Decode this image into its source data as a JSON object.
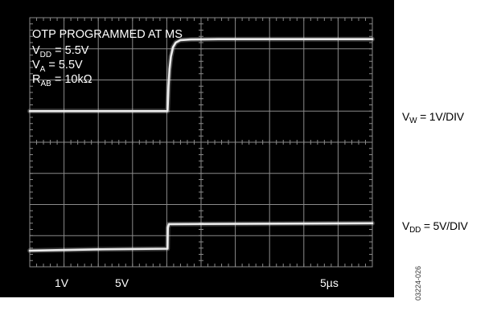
{
  "chart_data": {
    "type": "line",
    "title": "OTP PROGRAMMED AT MS",
    "conditions": {
      "vdd": {
        "sym": "V",
        "sub": "DD",
        "val": " = 5.5V"
      },
      "va": {
        "sym": "V",
        "sub": "A",
        "val": " = 5.5V"
      },
      "rab": {
        "sym": "R",
        "sub": "AB",
        "val": " = 10kΩ"
      }
    },
    "grid": true,
    "x_divisions": 10,
    "y_divisions": 8,
    "xlim_div": [
      0,
      10
    ],
    "ylim_div": [
      0,
      8
    ],
    "scale_labels": {
      "ch1": "1V",
      "ch2": "5V",
      "time": "5µs"
    },
    "series": [
      {
        "name": "VW",
        "scale": "1V/DIV",
        "x": [
          0.0,
          4.02,
          4.03,
          4.05,
          4.08,
          4.12,
          4.18,
          4.26,
          4.4,
          4.7,
          5.5,
          7.5,
          10.0
        ],
        "y": [
          5.0,
          5.0,
          5.25,
          5.8,
          6.35,
          6.75,
          7.05,
          7.2,
          7.28,
          7.3,
          7.31,
          7.31,
          7.31
        ]
      },
      {
        "name": "VDD",
        "scale": "5V/DIV",
        "x": [
          0.0,
          2.0,
          4.02,
          4.03,
          4.06,
          10.0
        ],
        "y": [
          0.52,
          0.56,
          0.58,
          1.25,
          1.37,
          1.4
        ]
      }
    ]
  },
  "side_labels": {
    "vw": {
      "sym": "V",
      "sub": "W",
      "val": " = 1V/DIV"
    },
    "vdd": {
      "sym": "V",
      "sub": "DD",
      "val": " = 5V/DIV"
    }
  },
  "figure_id": "03224-026",
  "colors": {
    "screen": "#000000",
    "grid": "#8a8a8a",
    "trace": "#ececec",
    "text": "#ffffff"
  }
}
